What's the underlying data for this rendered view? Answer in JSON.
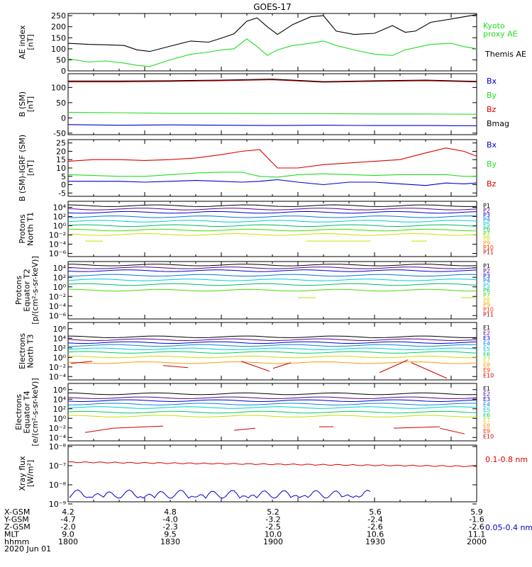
{
  "title": "GOES-17",
  "colors": {
    "black": "#000000",
    "red": "#dd0000",
    "darkred": "#8b0000",
    "green": "#22dd22",
    "blue": "#0000cc"
  },
  "xaxis": {
    "ticks": [
      "1800",
      "1830",
      "1900",
      "1930",
      "2000"
    ],
    "rows": [
      {
        "label": "X-GSM",
        "values": [
          "4.2",
          "4.8",
          "5.2",
          "5.6",
          "5.9"
        ]
      },
      {
        "label": "Y-GSM",
        "values": [
          "-4.7",
          "-4.0",
          "-3.2",
          "-2.4",
          "-1.6"
        ]
      },
      {
        "label": "Z-GSM",
        "values": [
          "-2.0",
          "-2.3",
          "-2.5",
          "-2.6",
          "-2.6"
        ]
      },
      {
        "label": "MLT",
        "values": [
          "9.0",
          "9.5",
          "10.0",
          "10.6",
          "11.1"
        ]
      },
      {
        "label": "hhmm",
        "values": [
          "1800",
          "1830",
          "1900",
          "1930",
          "2000"
        ]
      }
    ],
    "date": "2020 Jun 01"
  },
  "chart_data": [
    {
      "type": "line",
      "ylabel": "AE index\n[nT]",
      "ylim": [
        0,
        260
      ],
      "y_ticks": [
        "0",
        "50",
        "100",
        "150",
        "200",
        "250"
      ],
      "x": [
        1800,
        1808,
        1815,
        1822,
        1827,
        1832,
        1840,
        1848,
        1855,
        1860,
        1865,
        1870,
        1874,
        1878,
        1882,
        1888,
        1895,
        1900,
        1905,
        1912,
        1920,
        1927,
        1932,
        1936,
        1942,
        1950,
        1955,
        1960
      ],
      "series": [
        {
          "name": "Themis AE",
          "color": "black",
          "values": [
            125,
            120,
            118,
            115,
            95,
            88,
            112,
            135,
            130,
            148,
            168,
            225,
            240,
            200,
            165,
            210,
            245,
            250,
            180,
            165,
            170,
            205,
            175,
            180,
            220,
            235,
            245,
            255
          ]
        },
        {
          "name": "Kyoto\nproxy AE",
          "color": "green",
          "values": [
            55,
            40,
            45,
            35,
            25,
            20,
            50,
            75,
            85,
            95,
            100,
            145,
            110,
            70,
            95,
            115,
            125,
            135,
            115,
            95,
            75,
            70,
            95,
            105,
            120,
            125,
            110,
            100
          ]
        }
      ]
    },
    {
      "type": "line",
      "ylabel": "B (SM)\n[nT]",
      "ylim": [
        -55,
        145
      ],
      "y_ticks": [
        "-50",
        "0",
        "50",
        "100"
      ],
      "x": [
        1800,
        1820,
        1840,
        1860,
        1880,
        1900,
        1920,
        1940,
        1960
      ],
      "series": [
        {
          "name": "Bx",
          "color": "blue",
          "values": [
            -22,
            -24,
            -23,
            -24,
            -25,
            -24,
            -25,
            -25,
            -26
          ]
        },
        {
          "name": "By",
          "color": "green",
          "values": [
            18,
            17,
            15,
            15,
            14,
            14,
            13,
            13,
            12
          ]
        },
        {
          "name": "Bz",
          "color": "red",
          "values": [
            118,
            118,
            120,
            122,
            125,
            117,
            120,
            122,
            118
          ]
        },
        {
          "name": "Bmag",
          "color": "black",
          "values": [
            121,
            121,
            122,
            124,
            127,
            119,
            122,
            124,
            120
          ]
        }
      ]
    },
    {
      "type": "line",
      "ylabel": "B (SM)-IGRF (SM)\n[nT]",
      "ylim": [
        -7,
        27
      ],
      "y_ticks": [
        "-5",
        "0",
        "5",
        "10",
        "15",
        "20",
        "25"
      ],
      "x": [
        1800,
        1810,
        1820,
        1830,
        1840,
        1850,
        1860,
        1868,
        1875,
        1882,
        1890,
        1900,
        1910,
        1920,
        1930,
        1940,
        1948,
        1955,
        1960
      ],
      "series": [
        {
          "name": "Bx",
          "color": "blue",
          "values": [
            2,
            2,
            2,
            1.5,
            2,
            2.5,
            2,
            1.5,
            2,
            3,
            1.5,
            0,
            1.5,
            1.5,
            0.5,
            -0.5,
            1,
            0.5,
            1
          ]
        },
        {
          "name": "By",
          "color": "green",
          "values": [
            6,
            5.5,
            5,
            5,
            6,
            7,
            7.5,
            7.5,
            5,
            4.5,
            6,
            6.5,
            6,
            5.5,
            6,
            6,
            6,
            5,
            5
          ]
        },
        {
          "name": "Bz",
          "color": "red",
          "values": [
            14,
            15,
            15,
            14.5,
            15,
            16,
            18,
            20,
            21,
            10,
            10,
            12,
            13,
            14,
            15,
            19,
            22,
            20,
            17
          ]
        }
      ]
    }
  ],
  "panels": [
    {
      "ylabel": "AE index\n[nT]",
      "legend": [
        "Kyoto\nproxy AE",
        "Themis AE"
      ]
    },
    {
      "ylabel": "B (SM)\n[nT]",
      "legend": [
        "Bx",
        "By",
        "Bz",
        "Bmag"
      ]
    },
    {
      "ylabel": "B (SM)-IGRF (SM)\n[nT]",
      "legend": [
        "Bx",
        "By",
        "Bz"
      ]
    },
    {
      "ylabel": "Protons\nNorth T1",
      "y_ticks": [
        "10⁴",
        "10²",
        "10⁰",
        "10⁻²",
        "10⁻⁴",
        "10⁻⁶"
      ],
      "legend": [
        "P1",
        "P2",
        "P3",
        "P4",
        "P5",
        "P6",
        "P7",
        "P8",
        "P9",
        "P10",
        "P11"
      ]
    },
    {
      "ylabel": "Protons\nEquator T2\n[p/(cm²-s-sr-keV)]",
      "y_ticks": [
        "10⁴",
        "10²",
        "10⁰",
        "10⁻²",
        "10⁻⁴",
        "10⁻⁶"
      ],
      "legend": [
        "P1",
        "P2",
        "P3",
        "P4",
        "P5",
        "P6",
        "P7",
        "P8",
        "P9",
        "P10",
        "P11"
      ]
    },
    {
      "ylabel": "Electrons\nNorth T3",
      "y_ticks": [
        "10⁶",
        "10⁴",
        "10²",
        "10⁰",
        "10⁻²",
        "10⁻⁴"
      ],
      "legend": [
        "E1",
        "E2",
        "E3",
        "E4",
        "E5",
        "E6",
        "E7",
        "E8",
        "E9",
        "E10"
      ]
    },
    {
      "ylabel": "Electrons\nEquator T4\n[e/(cm²-s-sr-keV)]",
      "y_ticks": [
        "10⁶",
        "10⁴",
        "10²",
        "10⁰",
        "10⁻²",
        "10⁻⁴"
      ],
      "legend": [
        "E1",
        "E2",
        "E3",
        "E4",
        "E5",
        "E6",
        "E7",
        "E8",
        "E9",
        "E10"
      ]
    },
    {
      "ylabel": "Xray flux\n[W/m²]",
      "y_ticks": [
        "10⁻⁸",
        "10⁻⁷",
        "10⁻⁸",
        "10⁻⁹"
      ],
      "legend": [
        "0.1-0.8 nm",
        "0.05-0.4 nm"
      ]
    }
  ],
  "legend_colors": {
    "protons": [
      "#000000",
      "#550088",
      "#0000cc",
      "#0077dd",
      "#00cccc",
      "#00bb66",
      "#44dd00",
      "#ccdd00",
      "#ff9900",
      "#ff3300",
      "#cc0000"
    ],
    "electrons": [
      "#000000",
      "#550088",
      "#0000cc",
      "#0088dd",
      "#00cccc",
      "#00cc66",
      "#ccdd00",
      "#ff9900",
      "#ff3300",
      "#cc0000"
    ]
  }
}
